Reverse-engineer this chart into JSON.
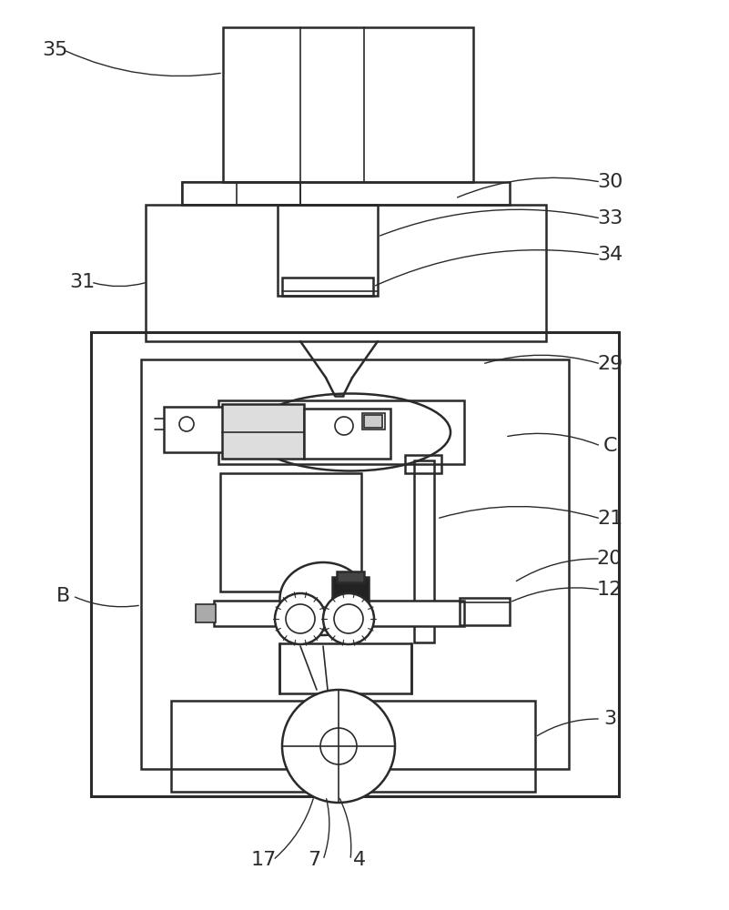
{
  "bg_color": "#ffffff",
  "lc": "#2a2a2a",
  "lw_main": 1.8,
  "lw_thin": 1.2,
  "lw_thick": 2.2,
  "figsize": [
    8.01,
    10.0
  ],
  "dpi": 100
}
